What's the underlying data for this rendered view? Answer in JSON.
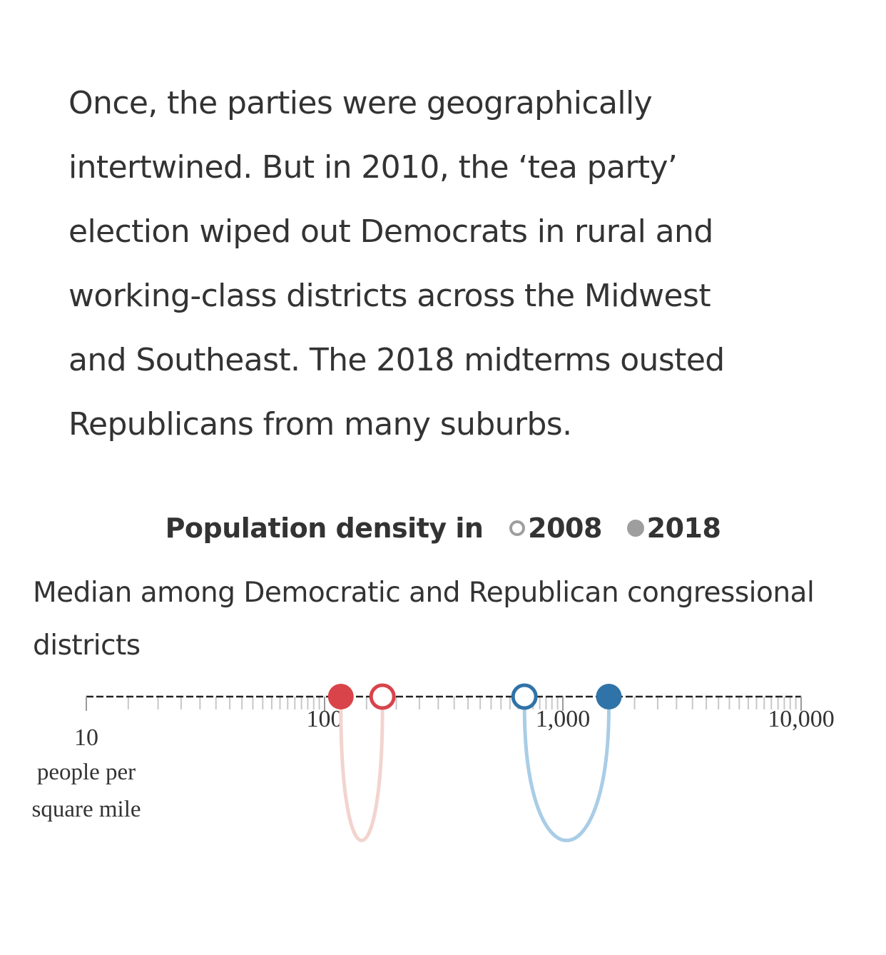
{
  "intro": {
    "lines": [
      "Once, the parties were geographically",
      "intertwined. But in 2010, the ‘tea party’",
      "election wiped out Democrats in rural and",
      "working-class districts across the Midwest",
      "and Southeast. The 2018 midterms ousted",
      "Republicans from many suburbs."
    ]
  },
  "chart_data": {
    "type": "scatter",
    "scale": "log",
    "title": "Population density in",
    "legend": [
      {
        "label": "2008",
        "marker": "open"
      },
      {
        "label": "2018",
        "marker": "filled"
      }
    ],
    "subtitle_lines": [
      "Median among Democratic and Republican congressional",
      "districts"
    ],
    "xlim": [
      10,
      10000
    ],
    "ticks": [
      {
        "value": 10,
        "label": "10"
      },
      {
        "value": 100,
        "label": "100"
      },
      {
        "value": 1000,
        "label": "1,000"
      },
      {
        "value": 10000,
        "label": "10,000"
      }
    ],
    "unit_lines": [
      "people per",
      "square mile"
    ],
    "series": [
      {
        "name": "Republican",
        "color": "#d9434a",
        "arc_color": "#f2d4cf",
        "values": {
          "2008": 175,
          "2018": 117
        }
      },
      {
        "name": "Democratic",
        "color": "#2f73a8",
        "arc_color": "#a9cde6",
        "values": {
          "2008": 690,
          "2018": 1560
        }
      }
    ]
  }
}
